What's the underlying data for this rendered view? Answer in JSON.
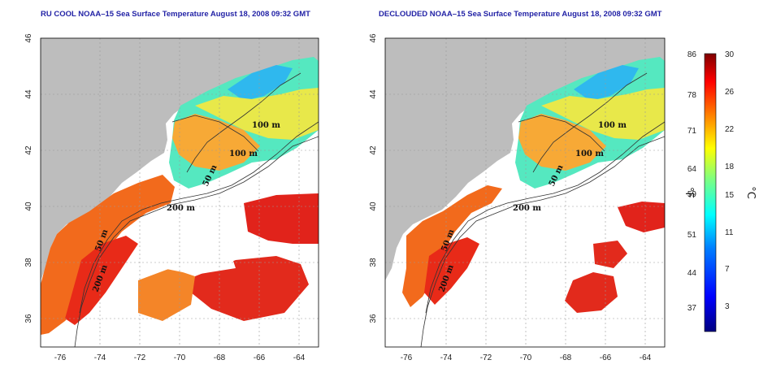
{
  "panels": [
    {
      "title": "RU COOL NOAA–15 Sea Surface Temperature August 18, 2008 09:32 GMT",
      "isobath_labels": [
        "100 m",
        "100 m",
        "50 m",
        "200 m",
        "50 m",
        "200 m"
      ]
    },
    {
      "title": "DECLOUDED NOAA–15 Sea Surface Temperature August 18, 2008 09:32 GMT",
      "isobath_labels": [
        "100 m",
        "100 m",
        "50 m",
        "200 m",
        "50 m",
        "200 m"
      ]
    }
  ],
  "axes": {
    "lat_ticks": [
      "46",
      "44",
      "42",
      "40",
      "38",
      "36"
    ],
    "lon_ticks": [
      "-76",
      "-74",
      "-72",
      "-70",
      "-68",
      "-66",
      "-64"
    ]
  },
  "colorbar": {
    "fahrenheit_ticks": [
      "86",
      "78",
      "71",
      "64",
      "59",
      "51",
      "44",
      "37"
    ],
    "celsius_ticks": [
      "30",
      "26",
      "22",
      "18",
      "15",
      "11",
      "7",
      "3"
    ],
    "fahrenheit_unit": "°F",
    "celsius_unit": "°C"
  },
  "colors": {
    "land": "#bdbdbd",
    "cloud": "#ffffff",
    "title": "#2323a6",
    "grid": "#9a9a9a",
    "colormap": [
      "#00007f",
      "#0000ff",
      "#007fff",
      "#00ffff",
      "#7fff7f",
      "#ffff00",
      "#ff7f00",
      "#ff0000",
      "#7f0000"
    ]
  }
}
